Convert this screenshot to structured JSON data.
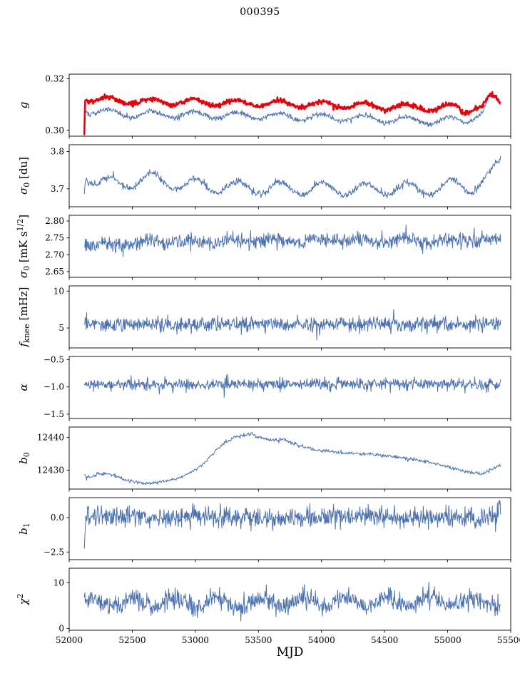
{
  "chart_data": {
    "type": "line",
    "title": "000395",
    "xlabel": "MJD",
    "x_range": [
      52000,
      55500
    ],
    "x_data_range": [
      52120,
      55420
    ],
    "x_ticks": [
      52000,
      52500,
      53000,
      53500,
      54000,
      54500,
      55000,
      55500
    ],
    "x_tick_labels": [
      "52000",
      "52500",
      "53000",
      "53500",
      "54000",
      "54500",
      "55000",
      "55500"
    ],
    "grid": false,
    "legend": "none",
    "colors": {
      "blue": "#4c72b0",
      "red": "#e8000b"
    },
    "panels": [
      {
        "name": "g",
        "ylabel": [
          {
            "t": "g",
            "it": true
          }
        ],
        "ylim": [
          0.2978,
          0.3218
        ],
        "yticks": [
          0.3,
          0.32
        ],
        "ytick_labels": [
          "0.30",
          "0.32"
        ],
        "series": [
          {
            "color": "blue",
            "width": 1,
            "seed": 101,
            "n": 900,
            "noise": 0.0005,
            "sin": {
              "amp": 0.0013,
              "period": 337,
              "phase": 52230
            },
            "keypoints": [
              [
                52120,
                0.299
              ],
              [
                52126,
                0.3082
              ],
              [
                52200,
                0.3072
              ],
              [
                52500,
                0.3063
              ],
              [
                53200,
                0.306
              ],
              [
                54000,
                0.3052
              ],
              [
                54600,
                0.3042
              ],
              [
                54950,
                0.3036
              ],
              [
                55080,
                0.3044
              ],
              [
                55120,
                0.3036
              ],
              [
                55200,
                0.3052
              ],
              [
                55280,
                0.3068
              ],
              [
                55330,
                0.3125
              ],
              [
                55370,
                0.312
              ],
              [
                55420,
                0.3095
              ]
            ]
          },
          {
            "color": "red",
            "width": 2.6,
            "seed": 102,
            "n": 900,
            "noise": 0.00045,
            "sin": {
              "amp": 0.0012,
              "period": 337,
              "phase": 52230
            },
            "keypoints": [
              [
                52120,
                0.2998
              ],
              [
                52126,
                0.3128
              ],
              [
                52200,
                0.312
              ],
              [
                52500,
                0.3112
              ],
              [
                53200,
                0.3108
              ],
              [
                54000,
                0.31
              ],
              [
                54600,
                0.3092
              ],
              [
                54950,
                0.3086
              ],
              [
                55080,
                0.3092
              ],
              [
                55120,
                0.3072
              ],
              [
                55200,
                0.309
              ],
              [
                55280,
                0.3094
              ],
              [
                55330,
                0.3128
              ],
              [
                55370,
                0.3122
              ],
              [
                55420,
                0.31
              ]
            ]
          }
        ]
      },
      {
        "name": "sigma0-du",
        "ylabel": [
          {
            "t": "σ",
            "it": true
          },
          {
            "t": "0",
            "sub": true
          },
          {
            "t": " [du]"
          }
        ],
        "ylim": [
          3.652,
          3.818
        ],
        "yticks": [
          3.7,
          3.8
        ],
        "ytick_labels": [
          "3.7",
          "3.8"
        ],
        "series": [
          {
            "color": "blue",
            "width": 1,
            "seed": 201,
            "n": 800,
            "noise": 0.0045,
            "sin": {
              "amp": 0.017,
              "period": 337,
              "phase": 52240
            },
            "keypoints": [
              [
                52120,
                3.705
              ],
              [
                52132,
                3.742
              ],
              [
                52220,
                3.718
              ],
              [
                52420,
                3.712
              ],
              [
                52620,
                3.728
              ],
              [
                52900,
                3.712
              ],
              [
                53400,
                3.703
              ],
              [
                54200,
                3.7
              ],
              [
                54900,
                3.7
              ],
              [
                55100,
                3.712
              ],
              [
                55200,
                3.705
              ],
              [
                55300,
                3.724
              ],
              [
                55360,
                3.742
              ],
              [
                55420,
                3.772
              ]
            ]
          }
        ]
      },
      {
        "name": "sigma0-mks",
        "ylabel": [
          {
            "t": "σ",
            "it": true
          },
          {
            "t": "0",
            "sub": true
          },
          {
            "t": " [mK s"
          },
          {
            "t": "1/2",
            "sup": true
          },
          {
            "t": "]"
          }
        ],
        "ylim": [
          2.633,
          2.817
        ],
        "yticks": [
          2.65,
          2.7,
          2.75,
          2.8
        ],
        "ytick_labels": [
          "2.65",
          "2.70",
          "2.75",
          "2.80"
        ],
        "series": [
          {
            "color": "blue",
            "width": 1,
            "seed": 301,
            "n": 850,
            "noise": 0.011,
            "sin": {
              "amp": 0.004,
              "period": 337,
              "phase": 52200
            },
            "spikes": {
              "prob": 0.006,
              "amp": 0.03
            },
            "keypoints": [
              [
                52120,
                2.727
              ],
              [
                52600,
                2.736
              ],
              [
                53400,
                2.741
              ],
              [
                54200,
                2.744
              ],
              [
                54900,
                2.741
              ],
              [
                55420,
                2.744
              ]
            ]
          }
        ]
      },
      {
        "name": "fknee",
        "ylabel": [
          {
            "t": "f",
            "it": true
          },
          {
            "t": "knee",
            "sub": true
          },
          {
            "t": " [mHz]"
          }
        ],
        "ylim": [
          2.3,
          10.7
        ],
        "yticks": [
          5,
          10
        ],
        "ytick_labels": [
          "5",
          "10"
        ],
        "series": [
          {
            "color": "blue",
            "width": 1,
            "seed": 401,
            "n": 900,
            "noise": 0.5,
            "spikes": {
              "prob": 0.02,
              "amp": 1.6
            },
            "keypoints": [
              [
                52120,
                5.45
              ],
              [
                55420,
                5.55
              ]
            ]
          }
        ]
      },
      {
        "name": "alpha",
        "ylabel": [
          {
            "t": "α",
            "it": true
          }
        ],
        "ylim": [
          -1.58,
          -0.44
        ],
        "yticks": [
          -1.5,
          -1.0,
          -0.5
        ],
        "ytick_labels": [
          "−1.5",
          "−1.0",
          "−0.5"
        ],
        "series": [
          {
            "color": "blue",
            "width": 1,
            "seed": 501,
            "n": 900,
            "noise": 0.05,
            "spikes": {
              "prob": 0.012,
              "amp": 0.16
            },
            "keypoints": [
              [
                52120,
                -0.952
              ],
              [
                55420,
                -0.945
              ]
            ]
          }
        ]
      },
      {
        "name": "b0",
        "ylabel": [
          {
            "t": "b",
            "it": true
          },
          {
            "t": "0",
            "sub": true
          }
        ],
        "ylim": [
          12424.2,
          12443.2
        ],
        "yticks": [
          12430,
          12440
        ],
        "ytick_labels": [
          "12430",
          "12440"
        ],
        "series": [
          {
            "color": "blue",
            "width": 1,
            "seed": 601,
            "n": 750,
            "noise": 0.28,
            "keypoints": [
              [
                52120,
                12428.8
              ],
              [
                52140,
                12427.6
              ],
              [
                52230,
                12428.9
              ],
              [
                52330,
                12428.7
              ],
              [
                52480,
                12426.6
              ],
              [
                52600,
                12425.9
              ],
              [
                52760,
                12426.5
              ],
              [
                52900,
                12427.9
              ],
              [
                53050,
                12431.5
              ],
              [
                53200,
                12437.5
              ],
              [
                53320,
                12440.3
              ],
              [
                53430,
                12441.2
              ],
              [
                53500,
                12440.1
              ],
              [
                53580,
                12439.2
              ],
              [
                53700,
                12439.4
              ],
              [
                53820,
                12437.6
              ],
              [
                53950,
                12436.2
              ],
              [
                54150,
                12435.3
              ],
              [
                54350,
                12434.9
              ],
              [
                54550,
                12434.2
              ],
              [
                54750,
                12433.2
              ],
              [
                54950,
                12431.6
              ],
              [
                55100,
                12430.0
              ],
              [
                55200,
                12429.0
              ],
              [
                55280,
                12428.9
              ],
              [
                55340,
                12430.1
              ],
              [
                55420,
                12431.6
              ]
            ]
          }
        ]
      },
      {
        "name": "b1",
        "ylabel": [
          {
            "t": "b",
            "it": true
          },
          {
            "t": "1",
            "sub": true
          }
        ],
        "ylim": [
          -3.05,
          1.45
        ],
        "yticks": [
          -2.5,
          0.0
        ],
        "ytick_labels": [
          "−2.5",
          "0.0"
        ],
        "series": [
          {
            "color": "blue",
            "width": 1,
            "seed": 701,
            "n": 900,
            "noise": 0.36,
            "spikes": {
              "prob": 0.012,
              "amp": 1.0
            },
            "keypoints": [
              [
                52120,
                -2.45
              ],
              [
                52132,
                0.05
              ],
              [
                55395,
                0.0
              ],
              [
                55410,
                1.15
              ],
              [
                55420,
                0.2
              ]
            ]
          }
        ]
      },
      {
        "name": "chi2",
        "ylabel": [
          {
            "t": "χ",
            "it": true
          },
          {
            "t": "2",
            "sup": true
          }
        ],
        "ylim": [
          -0.4,
          13.2
        ],
        "yticks": [
          0,
          10
        ],
        "ytick_labels": [
          "0",
          "10"
        ],
        "series": [
          {
            "color": "blue",
            "width": 1,
            "seed": 801,
            "n": 900,
            "noise": 1.05,
            "sin": {
              "amp": 1.05,
              "period": 337,
              "phase": 52420
            },
            "spikes": {
              "prob": 0.012,
              "amp": 2.5
            },
            "keypoints": [
              [
                52120,
                5.6
              ],
              [
                55420,
                5.9
              ]
            ]
          }
        ]
      }
    ]
  }
}
